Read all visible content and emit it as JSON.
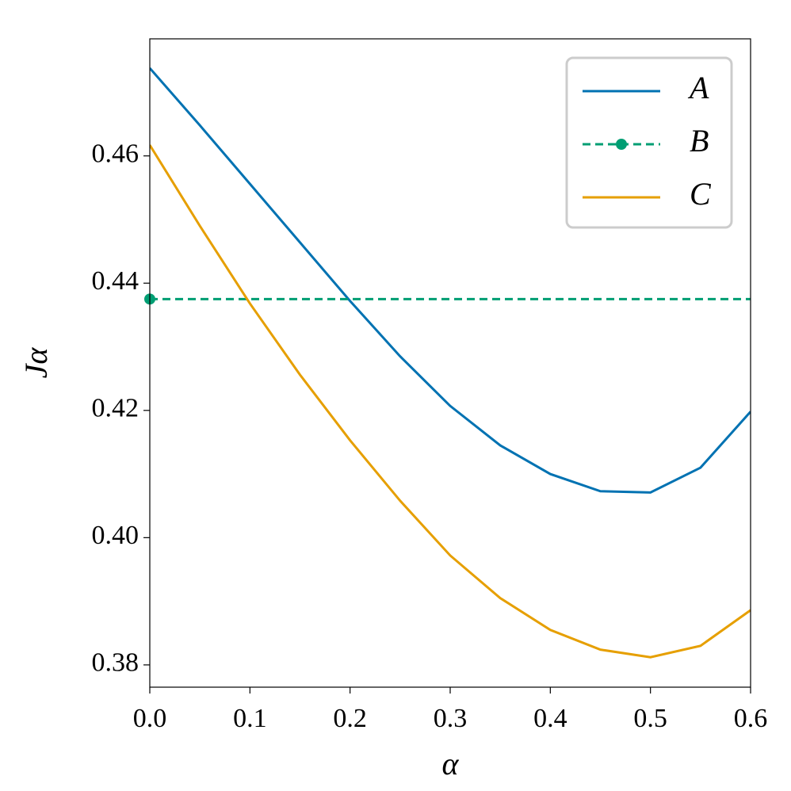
{
  "chart_data": {
    "type": "line",
    "xlabel": "α",
    "ylabel": "Jα",
    "x": [
      0,
      0.05,
      0.1,
      0.15,
      0.2,
      0.25,
      0.3,
      0.35,
      0.4,
      0.45,
      0.5,
      0.55,
      0.6
    ],
    "series": [
      {
        "name": "A",
        "color": "#0072b2",
        "dash": false,
        "marker": false,
        "values": [
          0.4738,
          0.4648,
          0.4556,
          0.4464,
          0.4372,
          0.4285,
          0.4207,
          0.4145,
          0.41,
          0.4073,
          0.4071,
          0.411,
          0.4198
        ]
      },
      {
        "name": "B",
        "color": "#009e73",
        "dash": true,
        "marker": true,
        "values": [
          0.4375,
          0.4375,
          0.4375,
          0.4375,
          0.4375,
          0.4375,
          0.4375,
          0.4375,
          0.4375,
          0.4375,
          0.4375,
          0.4375,
          0.4375
        ]
      },
      {
        "name": "C",
        "color": "#e69f00",
        "dash": false,
        "marker": false,
        "values": [
          0.4617,
          0.449,
          0.4368,
          0.4256,
          0.4153,
          0.4058,
          0.3972,
          0.3905,
          0.3855,
          0.3824,
          0.3812,
          0.383,
          0.3886
        ]
      }
    ],
    "xlim": [
      0,
      0.6
    ],
    "xticks": [
      {
        "value": 0,
        "label": "0.0"
      },
      0.1,
      0.2,
      0.3,
      0.4,
      0.5,
      0.6
    ],
    "ylim": [
      0.3765,
      0.4784
    ],
    "yticks": [
      0.38,
      {
        "value": 0.4,
        "label": "0.40"
      },
      0.42,
      0.44,
      0.46
    ],
    "grid": false,
    "legend": "upper right"
  }
}
